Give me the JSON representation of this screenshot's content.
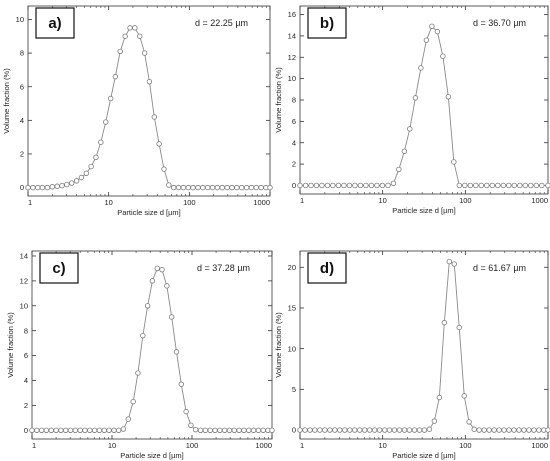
{
  "chart_data": [
    {
      "type": "scatter",
      "panel_label": "a)",
      "annotation": "d = 22.25 µm",
      "xlabel": "Particle size d [µm]",
      "ylabel": "Volume fraction (%)",
      "xscale": "log",
      "xlim": [
        1,
        1000
      ],
      "ylim": [
        -0.5,
        10.8
      ],
      "yticks": [
        0,
        2,
        4,
        6,
        8,
        10
      ],
      "xtick_labels": [
        "1",
        "10",
        "100",
        "1000"
      ],
      "grid": false,
      "series": [
        {
          "x": [
            1.0,
            1.15,
            1.32,
            1.51,
            1.74,
            2.0,
            2.3,
            2.64,
            3.03,
            3.48,
            4.0,
            4.59,
            5.28,
            6.06,
            6.96,
            8.0,
            9.19,
            10.6,
            12.1,
            13.9,
            16.0,
            18.4,
            21.1,
            24.3,
            27.9,
            32.0,
            36.8,
            42.2,
            48.5,
            55.7,
            64.0,
            73.5,
            84.4,
            97.0,
            111,
            128,
            147,
            169,
            194,
            223,
            256,
            294,
            338,
            388,
            446,
            512,
            588,
            676,
            776,
            891,
            1000
          ],
          "y": [
            0,
            0,
            0,
            0,
            0,
            0.05,
            0.08,
            0.12,
            0.18,
            0.27,
            0.4,
            0.6,
            0.85,
            1.25,
            1.8,
            2.7,
            3.9,
            5.3,
            6.6,
            8.1,
            9.0,
            9.5,
            9.5,
            9.0,
            8.0,
            6.3,
            4.2,
            2.6,
            1.1,
            0.15,
            0,
            0,
            0,
            0,
            0,
            0,
            0,
            0,
            0,
            0,
            0,
            0,
            0,
            0,
            0,
            0,
            0,
            0,
            0,
            0,
            0
          ]
        }
      ]
    },
    {
      "type": "scatter",
      "panel_label": "b)",
      "annotation": "d = 36.70 µm",
      "xlabel": "Particle size d [µm]",
      "ylabel": "Volume fraction (%)",
      "xscale": "log",
      "xlim": [
        1,
        1000
      ],
      "ylim": [
        -0.8,
        16.8
      ],
      "yticks": [
        0,
        2,
        4,
        6,
        8,
        10,
        12,
        14,
        16
      ],
      "xtick_labels": [
        "1",
        "10",
        "100",
        "1000"
      ],
      "grid": false,
      "series": [
        {
          "x": [
            1.0,
            1.17,
            1.36,
            1.58,
            1.84,
            2.15,
            2.5,
            2.92,
            3.4,
            3.96,
            4.62,
            5.38,
            6.27,
            7.31,
            8.52,
            9.93,
            11.6,
            13.5,
            15.7,
            18.3,
            21.3,
            24.9,
            29.0,
            33.8,
            39.4,
            45.9,
            53.5,
            62.3,
            72.6,
            84.6,
            98.6,
            115,
            134,
            156,
            182,
            212,
            247,
            288,
            336,
            391,
            456,
            531,
            619,
            722,
            841,
            1000
          ],
          "y": [
            0,
            0,
            0,
            0,
            0,
            0,
            0,
            0,
            0,
            0,
            0,
            0,
            0,
            0,
            0,
            0,
            0,
            0.2,
            1.5,
            3.2,
            5.3,
            8.2,
            11.0,
            13.6,
            14.9,
            14.4,
            12.1,
            8.3,
            2.2,
            0,
            0,
            0,
            0,
            0,
            0,
            0,
            0,
            0,
            0,
            0,
            0,
            0,
            0,
            0,
            0,
            0
          ]
        }
      ]
    },
    {
      "type": "scatter",
      "panel_label": "c)",
      "annotation": "d = 37.28 µm",
      "xlabel": "Particle size d [µm]",
      "ylabel": "Volume fraction (%)",
      "xscale": "log",
      "xlim": [
        1,
        1000
      ],
      "ylim": [
        -0.7,
        14.4
      ],
      "yticks": [
        0,
        2,
        4,
        6,
        8,
        10,
        12,
        14
      ],
      "xtick_labels": [
        "1",
        "10",
        "100",
        "1000"
      ],
      "grid": false,
      "series": [
        {
          "x": [
            1.0,
            1.15,
            1.32,
            1.51,
            1.74,
            2.0,
            2.3,
            2.64,
            3.03,
            3.48,
            4.0,
            4.59,
            5.28,
            6.06,
            6.96,
            8.0,
            9.19,
            10.6,
            12.1,
            13.9,
            16.0,
            18.4,
            21.1,
            24.3,
            27.9,
            32.0,
            36.8,
            42.2,
            48.5,
            55.7,
            64.0,
            73.5,
            84.4,
            97.0,
            111,
            128,
            147,
            169,
            194,
            223,
            256,
            294,
            338,
            388,
            446,
            512,
            588,
            676,
            776,
            891,
            1000
          ],
          "y": [
            0,
            0,
            0,
            0,
            0,
            0,
            0,
            0,
            0,
            0,
            0,
            0,
            0,
            0,
            0,
            0,
            0,
            0,
            0,
            0.1,
            0.9,
            2.3,
            4.6,
            7.6,
            10.0,
            12.0,
            13.0,
            12.9,
            11.6,
            9.1,
            6.3,
            3.7,
            1.5,
            0.4,
            0.05,
            0,
            0,
            0,
            0,
            0,
            0,
            0,
            0,
            0,
            0,
            0,
            0,
            0,
            0,
            0,
            0
          ]
        }
      ]
    },
    {
      "type": "scatter",
      "panel_label": "d)",
      "annotation": "d = 61.67 µm",
      "xlabel": "Particle size d [µm]",
      "ylabel": "Volume fraction (%)",
      "xscale": "log",
      "xlim": [
        1,
        1000
      ],
      "ylim": [
        -1.1,
        22.0
      ],
      "yticks": [
        0,
        5,
        10,
        15,
        20
      ],
      "xtick_labels": [
        "1",
        "10",
        "100",
        "1000"
      ],
      "grid": false,
      "series": [
        {
          "x": [
            1.0,
            1.15,
            1.32,
            1.51,
            1.74,
            2.0,
            2.3,
            2.64,
            3.03,
            3.48,
            4.0,
            4.59,
            5.28,
            6.06,
            6.96,
            8.0,
            9.19,
            10.6,
            12.1,
            13.9,
            16.0,
            18.4,
            21.1,
            24.3,
            27.9,
            32.0,
            36.8,
            42.2,
            48.5,
            55.7,
            64.0,
            73.5,
            84.4,
            97.0,
            111,
            128,
            147,
            169,
            194,
            223,
            256,
            294,
            338,
            388,
            446,
            512,
            588,
            676,
            776,
            891,
            1000
          ],
          "y": [
            0,
            0,
            0,
            0,
            0,
            0,
            0,
            0,
            0,
            0,
            0,
            0,
            0,
            0,
            0,
            0,
            0,
            0,
            0,
            0,
            0,
            0,
            0,
            0,
            0,
            0,
            0.1,
            1.1,
            4.0,
            13.2,
            20.7,
            20.4,
            12.6,
            4.2,
            1.0,
            0.1,
            0,
            0,
            0,
            0,
            0,
            0,
            0,
            0,
            0,
            0,
            0,
            0,
            0,
            0,
            0
          ]
        }
      ]
    }
  ],
  "style": {
    "marker_stroke": "#7a7a7a",
    "line_color": "#8a8a8a",
    "axis_color": "#333333",
    "text_color": "#222222"
  }
}
